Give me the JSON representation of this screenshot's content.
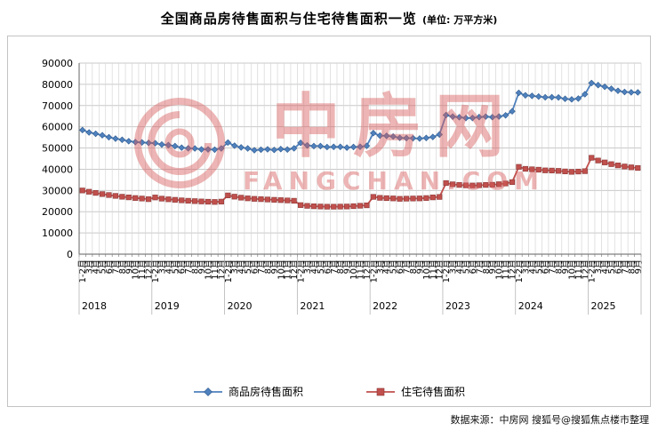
{
  "title": {
    "text": "全国商品房待售面积与住宅待售面积一览",
    "unit": "(单位: 万平方米)"
  },
  "source": "数据来源：中房网 搜狐号@搜狐焦点楼市整理",
  "watermark": {
    "name": "中房网",
    "domain": "FANGCHAN.COM",
    "color": "#d85c5c"
  },
  "chart_data": {
    "type": "line",
    "title": "全国商品房待售面积与住宅待售面积一览",
    "unit": "万平方米",
    "grid": true,
    "legend_position": "bottom",
    "y_axis": {
      "min": 0,
      "max": 90000,
      "step": 10000
    },
    "year_groups": [
      {
        "label": "2018",
        "months": 11
      },
      {
        "label": "2019",
        "months": 11
      },
      {
        "label": "2020",
        "months": 11
      },
      {
        "label": "2021",
        "months": 11
      },
      {
        "label": "2022",
        "months": 11
      },
      {
        "label": "2023",
        "months": 11
      },
      {
        "label": "2024",
        "months": 11
      },
      {
        "label": "2025",
        "months": 8
      }
    ],
    "categories": [
      "1-2月",
      "3月",
      "4月",
      "5月",
      "6月",
      "7月",
      "8月",
      "9月",
      "10月",
      "11月",
      "12月",
      "1-2月",
      "3月",
      "4月",
      "5月",
      "6月",
      "7月",
      "8月",
      "9月",
      "10月",
      "11月",
      "12月",
      "1-2月",
      "3月",
      "4月",
      "5月",
      "6月",
      "7月",
      "8月",
      "9月",
      "10月",
      "11月",
      "12月",
      "1-2月",
      "3月",
      "4月",
      "5月",
      "6月",
      "7月",
      "8月",
      "9月",
      "10月",
      "11月",
      "12月",
      "1-2月",
      "3月",
      "4月",
      "5月",
      "6月",
      "7月",
      "8月",
      "9月",
      "10月",
      "11月",
      "12月",
      "1-2月",
      "3月",
      "4月",
      "5月",
      "6月",
      "7月",
      "8月",
      "9月",
      "10月",
      "11月",
      "12月",
      "1-2月",
      "3月",
      "4月",
      "5月",
      "6月",
      "7月",
      "8月",
      "9月",
      "10月",
      "11月",
      "12月",
      "1-2月",
      "3月",
      "4月",
      "5月",
      "6月",
      "7月",
      "8月",
      "9月"
    ],
    "series": [
      {
        "name": "商品房待售面积",
        "color": "#4F81BD",
        "edge": "#2f5b8f",
        "marker": "diamond",
        "values": [
          58468,
          57329,
          56726,
          56010,
          55083,
          54428,
          53873,
          53191,
          52789,
          52627,
          52414,
          52251,
          51646,
          51380,
          50928,
          50162,
          49876,
          49784,
          49346,
          49323,
          49221,
          49821,
          52563,
          51104,
          50295,
          49821,
          48955,
          49207,
          49374,
          49101,
          49492,
          49287,
          49850,
          52425,
          51241,
          50916,
          50928,
          50461,
          50535,
          50539,
          50191,
          50494,
          50576,
          51023,
          57026,
          55846,
          55735,
          55433,
          54784,
          54655,
          54605,
          54467,
          54734,
          55203,
          56366,
          65528,
          64770,
          64487,
          64120,
          64159,
          64564,
          64795,
          64537,
          64835,
          65385,
          67295,
          75969,
          74833,
          74553,
          74256,
          73894,
          73926,
          73811,
          73177,
          72909,
          73286,
          75327,
          80609,
          79654,
          78843,
          77915,
          76948,
          76386,
          76213,
          76208
        ]
      },
      {
        "name": "住宅待售面积",
        "color": "#C0504D",
        "edge": "#8c3836",
        "marker": "square",
        "values": [
          30000,
          29400,
          28850,
          28300,
          27850,
          27450,
          27050,
          26750,
          26450,
          26200,
          25900,
          26700,
          26150,
          25850,
          25600,
          25350,
          25150,
          24980,
          24820,
          24700,
          24590,
          24750,
          27679,
          27083,
          26610,
          26291,
          26050,
          25900,
          25750,
          25600,
          25450,
          25300,
          25150,
          23100,
          22750,
          22550,
          22450,
          22350,
          22350,
          22400,
          22450,
          22600,
          22800,
          23000,
          26985,
          26520,
          26384,
          26259,
          26057,
          26139,
          26219,
          26261,
          26442,
          26738,
          26947,
          33500,
          32900,
          32600,
          32400,
          32350,
          32450,
          32600,
          32700,
          32950,
          33300,
          33950,
          41118,
          40193,
          39968,
          39788,
          39462,
          39383,
          39232,
          38972,
          38760,
          38911,
          39088,
          45400,
          44100,
          43200,
          42400,
          41800,
          41300,
          40900,
          40600
        ]
      }
    ]
  }
}
